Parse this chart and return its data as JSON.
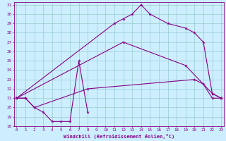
{
  "xlabel": "Windchill (Refroidissement éolien,°C)",
  "bg_color": "#cceeff",
  "line_color": "#880088",
  "grid_color": "#99cccc",
  "xmin": 0,
  "xmax": 23,
  "ymin": 18,
  "ymax": 31,
  "series_clean": [
    {
      "x": [
        0,
        1,
        2,
        3,
        4,
        5,
        6,
        7,
        8
      ],
      "y": [
        21.0,
        21.0,
        20.0,
        19.5,
        18.5,
        18.5,
        18.5,
        25.0,
        19.5
      ]
    },
    {
      "x": [
        0,
        1,
        2,
        8,
        20,
        21,
        22,
        23
      ],
      "y": [
        21.0,
        21.0,
        20.0,
        22.0,
        23.0,
        22.5,
        21.0,
        21.0
      ]
    },
    {
      "x": [
        0,
        12,
        19,
        22,
        23
      ],
      "y": [
        21.0,
        27.0,
        24.5,
        21.5,
        21.0
      ]
    },
    {
      "x": [
        0,
        11,
        12,
        13,
        14,
        15,
        17,
        19,
        20,
        21,
        22,
        23
      ],
      "y": [
        21.0,
        29.0,
        29.5,
        30.0,
        31.0,
        30.0,
        29.0,
        28.5,
        28.0,
        27.0,
        21.5,
        21.0
      ]
    }
  ]
}
